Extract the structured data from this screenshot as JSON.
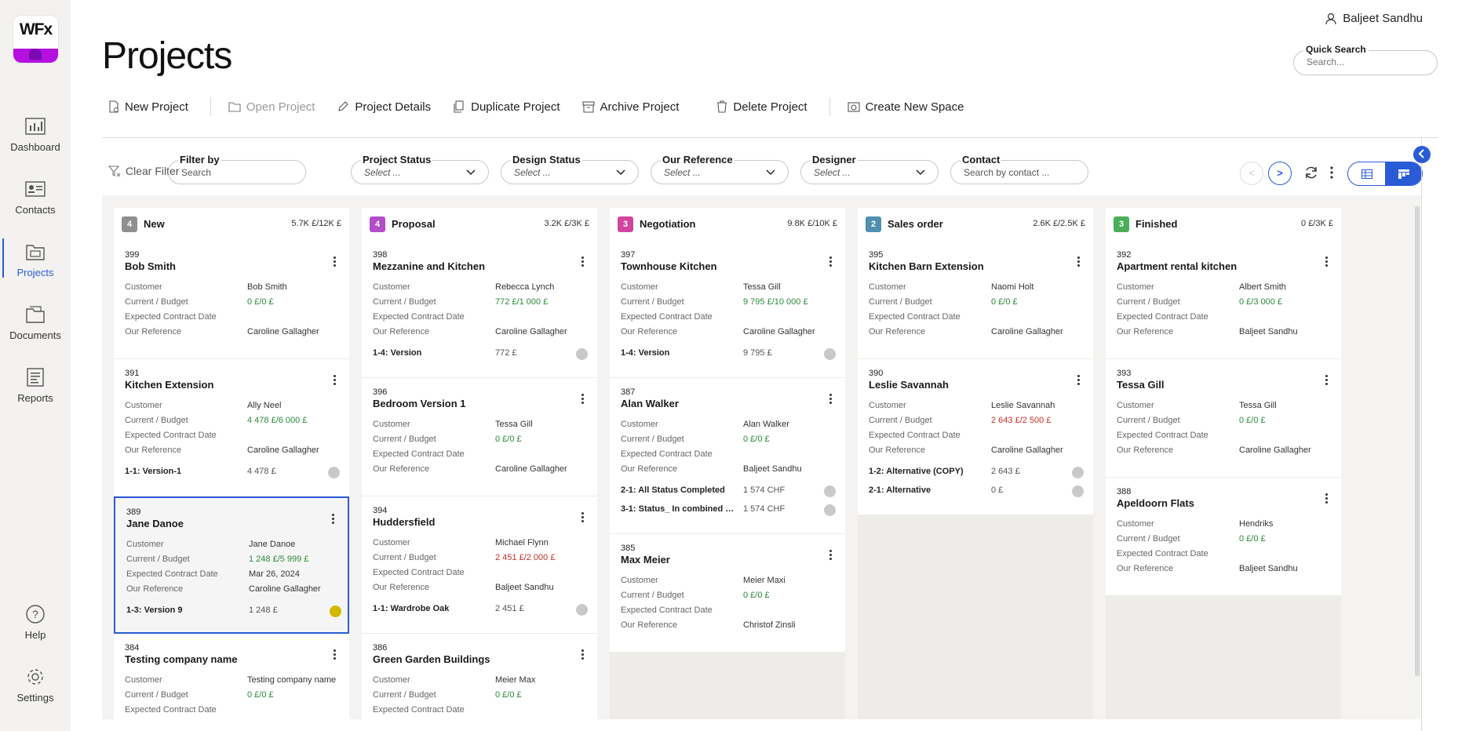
{
  "app": {
    "logo_text": "WFx"
  },
  "sidebar": {
    "items": [
      {
        "label": "Dashboard",
        "icon": "dashboard-icon"
      },
      {
        "label": "Contacts",
        "icon": "contacts-icon"
      },
      {
        "label": "Projects",
        "icon": "projects-icon",
        "active": true
      },
      {
        "label": "Documents",
        "icon": "documents-icon"
      },
      {
        "label": "Reports",
        "icon": "reports-icon"
      }
    ],
    "bottom": [
      {
        "label": "Help",
        "icon": "help-icon"
      },
      {
        "label": "Settings",
        "icon": "settings-icon"
      }
    ]
  },
  "header": {
    "user": "Baljeet Sandhu",
    "title": "Projects",
    "quick_search": {
      "label": "Quick Search",
      "placeholder": "Search..."
    }
  },
  "toolbar": {
    "new_project": "New Project",
    "open_project": "Open Project",
    "project_details": "Project Details",
    "duplicate_project": "Duplicate Project",
    "archive_project": "Archive Project",
    "delete_project": "Delete Project",
    "create_new_space": "Create New Space"
  },
  "filters": {
    "clear": "Clear Filter",
    "filter_by": {
      "label": "Filter by",
      "placeholder": "Search"
    },
    "project_status": {
      "label": "Project Status",
      "value": "Select ..."
    },
    "design_status": {
      "label": "Design Status",
      "value": "Select ..."
    },
    "our_reference": {
      "label": "Our Reference",
      "value": "Select ..."
    },
    "designer": {
      "label": "Designer",
      "value": "Select ..."
    },
    "contact": {
      "label": "Contact",
      "placeholder": "Search by contact ..."
    }
  },
  "pager": {
    "prev": "<",
    "next": ">"
  },
  "field_labels": {
    "customer": "Customer",
    "budget": "Current / Budget",
    "contract_date": "Expected Contract Date",
    "reference": "Our Reference"
  },
  "columns": [
    {
      "title": "New",
      "count": "4",
      "sum": "5.7K £/12K £",
      "color": "#8f8f8f"
    },
    {
      "title": "Proposal",
      "count": "4",
      "sum": "3.2K £/3K £",
      "color": "#b44dc8"
    },
    {
      "title": "Negotiation",
      "count": "3",
      "sum": "9.8K £/10K £",
      "color": "#d1459e"
    },
    {
      "title": "Sales order",
      "count": "2",
      "sum": "2.6K £/2.5K £",
      "color": "#4f8fb0"
    },
    {
      "title": "Finished",
      "count": "3",
      "sum": "0 £/3K £",
      "color": "#4bae5a"
    }
  ],
  "cards": {
    "c399": {
      "num": "399",
      "name": "Bob Smith",
      "customer": "Bob Smith",
      "budget": "0 £/0 £",
      "date": "",
      "reference": "Caroline Gallagher"
    },
    "c391": {
      "num": "391",
      "name": "Kitchen Extension",
      "customer": "Ally Neel",
      "budget": "4 478 £/6 000 £",
      "date": "",
      "reference": "Caroline Gallagher",
      "v1k": "1-1: Version-1",
      "v1v": "4 478 £"
    },
    "c389": {
      "num": "389",
      "name": "Jane Danoe",
      "customer": "Jane Danoe",
      "budget": "1 248 £/5 999 £",
      "date": "Mar 26, 2024",
      "reference": "Caroline Gallagher",
      "v1k": "1-3: Version 9",
      "v1v": "1 248 £"
    },
    "c384": {
      "num": "384",
      "name": "Testing company name",
      "customer": "Testing company name",
      "budget": "0 £/0 £",
      "date": ""
    },
    "c398": {
      "num": "398",
      "name": "Mezzanine and Kitchen",
      "customer": "Rebecca Lynch",
      "budget": "772 £/1 000 £",
      "date": "",
      "reference": "Caroline Gallagher",
      "v1k": "1-4: Version",
      "v1v": "772 £"
    },
    "c396": {
      "num": "396",
      "name": "Bedroom Version 1",
      "customer": "Tessa Gill",
      "budget": "0 £/0 £",
      "date": "",
      "reference": "Caroline Gallagher"
    },
    "c394": {
      "num": "394",
      "name": "Huddersfield",
      "customer": "Michael Flynn",
      "budget": "2 451 £/2 000 £",
      "date": "",
      "reference": "Baljeet Sandhu",
      "v1k": "1-1: Wardrobe Oak",
      "v1v": "2 451 £"
    },
    "c386": {
      "num": "386",
      "name": "Green Garden Buildings",
      "customer": "Meier Max",
      "budget": "0 £/0 £",
      "date": ""
    },
    "c397": {
      "num": "397",
      "name": "Townhouse Kitchen",
      "customer": "Tessa Gill",
      "budget": "9 795 £/10 000 £",
      "date": "",
      "reference": "Caroline Gallagher",
      "v1k": "1-4: Version",
      "v1v": "9 795 £"
    },
    "c387": {
      "num": "387",
      "name": "Alan Walker",
      "customer": "Alan Walker",
      "budget": "0 £/0 £",
      "date": "",
      "reference": "Baljeet Sandhu",
      "v1k": "2-1: All Status Completed",
      "v1v": "1 574 CHF",
      "v2k": "3-1: Status_ In combined Qu...",
      "v2v": "1 574 CHF"
    },
    "c385": {
      "num": "385",
      "name": "Max Meier",
      "customer": "Meier Maxi",
      "budget": "0 £/0 £",
      "date": "",
      "reference": "Christof Zinsli"
    },
    "c395": {
      "num": "395",
      "name": "Kitchen Barn Extension",
      "customer": "Naomi Holt",
      "budget": "0 £/0 £",
      "date": "",
      "reference": "Caroline Gallagher"
    },
    "c390": {
      "num": "390",
      "name": "Leslie Savannah",
      "customer": "Leslie Savannah",
      "budget": "2 643 £/2 500 £",
      "date": "",
      "reference": "Caroline Gallagher",
      "v1k": "1-2: Alternative (COPY)",
      "v1v": "2 643 £",
      "v2k": "2-1: Alternative",
      "v2v": "0 £"
    },
    "c392": {
      "num": "392",
      "name": "Apartment rental kitchen",
      "customer": "Albert Smith",
      "budget": "0 £/3 000 £",
      "date": "",
      "reference": "Baljeet Sandhu"
    },
    "c393": {
      "num": "393",
      "name": "Tessa Gill",
      "customer": "Tessa Gill",
      "budget": "0 £/0 £",
      "date": "",
      "reference": "Caroline Gallagher"
    },
    "c388": {
      "num": "388",
      "name": "Apeldoorn Flats",
      "customer": "Hendriks",
      "budget": "0 £/0 £",
      "date": "",
      "reference": "Baljeet Sandhu"
    }
  },
  "colors": {
    "accent": "#2a5bd7",
    "positive": "#2c8a3a",
    "over_budget": "#c8322a",
    "logo": "#b510e0"
  }
}
